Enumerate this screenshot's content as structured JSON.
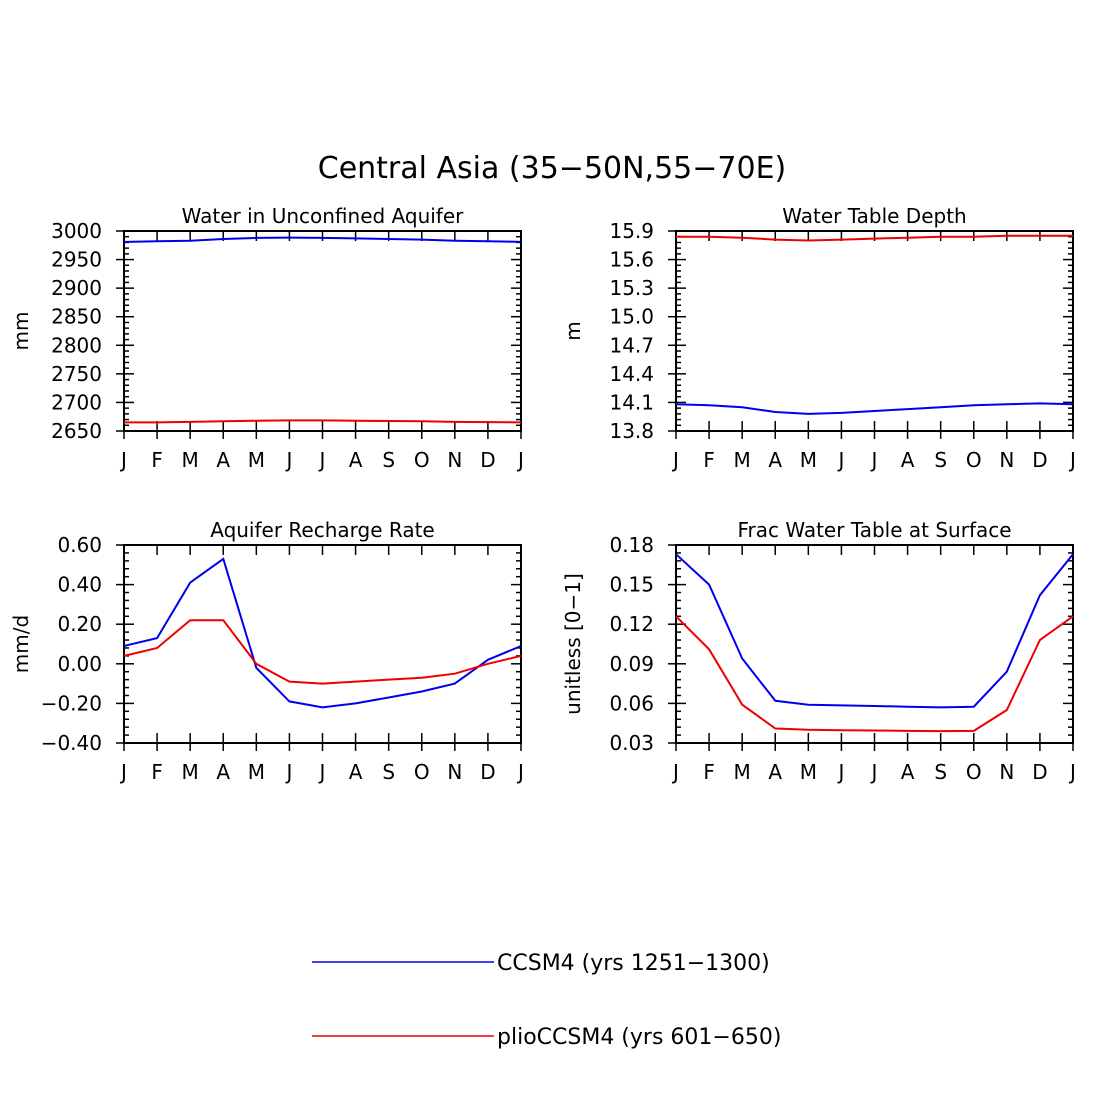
{
  "figure": {
    "title": "Central Asia (35-50N,55-70E)"
  },
  "colors": {
    "ccsm4": "#0000ee",
    "plio": "#ee0000"
  },
  "legend": [
    {
      "label": "CCSM4 (yrs 1251-1300)",
      "color": "#0000ee"
    },
    {
      "label": "plioCCSM4 (yrs 601-650)",
      "color": "#ee0000"
    }
  ],
  "chart_data": [
    {
      "type": "line",
      "title": "Water in Unconfined Aquifer",
      "ylabel": "mm",
      "xlabel": "",
      "categories": [
        "J",
        "F",
        "M",
        "A",
        "M",
        "J",
        "J",
        "A",
        "S",
        "O",
        "N",
        "D",
        "J"
      ],
      "ylim": [
        2650,
        3000
      ],
      "yticks": [
        "3000",
        "2950",
        "2900",
        "2850",
        "2800",
        "2750",
        "2700",
        "2650"
      ],
      "series": [
        {
          "name": "CCSM4 (yrs 1251-1300)",
          "color": "#0000ee",
          "values": [
            2981,
            2982,
            2983,
            2986,
            2988,
            2988.5,
            2988,
            2987,
            2986,
            2985,
            2983,
            2982,
            2981
          ]
        },
        {
          "name": "plioCCSM4 (yrs 601-650)",
          "color": "#ee0000",
          "values": [
            2665,
            2665,
            2666,
            2667,
            2668,
            2668.5,
            2668.5,
            2668,
            2667.5,
            2667,
            2666,
            2665.5,
            2665
          ]
        }
      ]
    },
    {
      "type": "line",
      "title": "Water Table Depth",
      "ylabel": "m",
      "xlabel": "",
      "categories": [
        "J",
        "F",
        "M",
        "A",
        "M",
        "J",
        "J",
        "A",
        "S",
        "O",
        "N",
        "D",
        "J"
      ],
      "ylim": [
        13.8,
        15.9
      ],
      "yticks": [
        "15.9",
        "15.6",
        "15.3",
        "15.0",
        "14.7",
        "14.4",
        "14.1",
        "13.8"
      ],
      "series": [
        {
          "name": "CCSM4 (yrs 1251-1300)",
          "color": "#0000ee",
          "values": [
            14.08,
            14.07,
            14.05,
            14.0,
            13.98,
            13.99,
            14.01,
            14.03,
            14.05,
            14.07,
            14.08,
            14.09,
            14.08
          ]
        },
        {
          "name": "plioCCSM4 (yrs 601-650)",
          "color": "#ee0000",
          "values": [
            15.84,
            15.84,
            15.83,
            15.81,
            15.8,
            15.81,
            15.82,
            15.83,
            15.84,
            15.84,
            15.85,
            15.85,
            15.85
          ]
        }
      ]
    },
    {
      "type": "line",
      "title": "Aquifer Recharge Rate",
      "ylabel": "mm/d",
      "xlabel": "",
      "categories": [
        "J",
        "F",
        "M",
        "A",
        "M",
        "J",
        "J",
        "A",
        "S",
        "O",
        "N",
        "D",
        "J"
      ],
      "ylim": [
        -0.4,
        0.6
      ],
      "yticks": [
        "0.60",
        "0.40",
        "0.20",
        "0.00",
        "-0.20",
        "-0.40"
      ],
      "series": [
        {
          "name": "CCSM4 (yrs 1251-1300)",
          "color": "#0000ee",
          "values": [
            0.09,
            0.13,
            0.41,
            0.53,
            -0.02,
            -0.19,
            -0.22,
            -0.2,
            -0.17,
            -0.14,
            -0.1,
            0.02,
            0.09
          ]
        },
        {
          "name": "plioCCSM4 (yrs 601-650)",
          "color": "#ee0000",
          "values": [
            0.04,
            0.08,
            0.22,
            0.22,
            0.0,
            -0.09,
            -0.1,
            -0.09,
            -0.08,
            -0.07,
            -0.05,
            0.0,
            0.04
          ]
        }
      ]
    },
    {
      "type": "line",
      "title": "Frac Water Table at Surface",
      "ylabel": "unitless [0-1]",
      "xlabel": "",
      "categories": [
        "J",
        "F",
        "M",
        "A",
        "M",
        "J",
        "J",
        "A",
        "S",
        "O",
        "N",
        "D",
        "J"
      ],
      "ylim": [
        0.03,
        0.18
      ],
      "yticks": [
        "0.18",
        "0.15",
        "0.12",
        "0.09",
        "0.06",
        "0.03"
      ],
      "series": [
        {
          "name": "CCSM4 (yrs 1251-1300)",
          "color": "#0000ee",
          "values": [
            0.173,
            0.15,
            0.094,
            0.062,
            0.059,
            0.0585,
            0.058,
            0.0575,
            0.057,
            0.0575,
            0.084,
            0.142,
            0.173
          ]
        },
        {
          "name": "plioCCSM4 (yrs 601-650)",
          "color": "#ee0000",
          "values": [
            0.126,
            0.101,
            0.059,
            0.041,
            0.04,
            0.0397,
            0.0395,
            0.0392,
            0.039,
            0.0392,
            0.055,
            0.108,
            0.126
          ]
        }
      ]
    }
  ]
}
